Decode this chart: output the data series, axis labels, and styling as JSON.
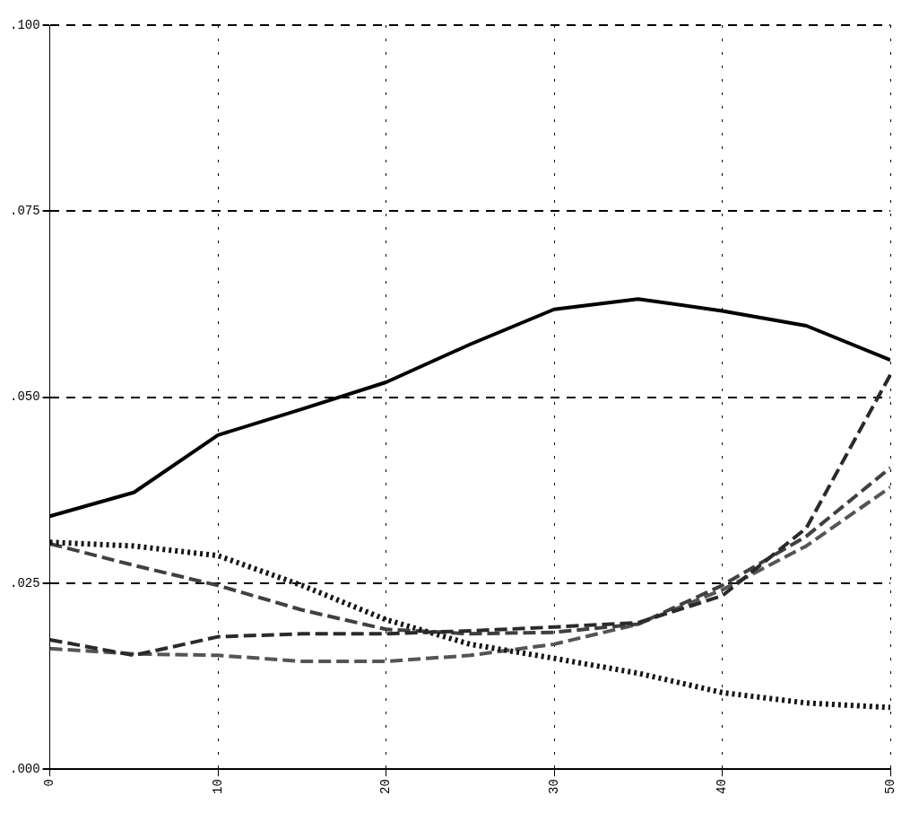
{
  "chart_data": {
    "type": "line",
    "x": [
      0,
      5,
      10,
      15,
      20,
      25,
      30,
      35,
      40,
      45,
      50
    ],
    "xlim": [
      0,
      50
    ],
    "xticks": [
      0,
      10,
      20,
      30,
      40,
      50
    ],
    "ylim": [
      0,
      0.1
    ],
    "yticks": [
      {
        "value": 0,
        "label": ".000"
      },
      {
        "value": 0.025,
        "label": ".025"
      },
      {
        "value": 0.05,
        "label": ".050"
      },
      {
        "value": 0.075,
        "label": ".075"
      },
      {
        "value": 0.1,
        "label": ".100"
      }
    ],
    "grid": true,
    "marker": "none",
    "series": [
      {
        "color": "#000000",
        "line_style": "solid",
        "values": [
          0.034,
          0.0372,
          0.0449,
          0.0484,
          0.052,
          0.0571,
          0.0618,
          0.0632,
          0.0616,
          0.0596,
          0.055
        ]
      },
      {
        "color": "#2a2a2a",
        "line_style": "dashed",
        "values": [
          0.0174,
          0.0153,
          0.0178,
          0.0182,
          0.0182,
          0.0186,
          0.0191,
          0.0197,
          0.0233,
          0.0324,
          0.053
        ]
      },
      {
        "color": "#151515",
        "line_style": "dotted",
        "values": [
          0.0305,
          0.03,
          0.0287,
          0.0247,
          0.0201,
          0.0168,
          0.0149,
          0.0129,
          0.0103,
          0.0089,
          0.0083
        ]
      },
      {
        "color": "#404040",
        "line_style": "dashed",
        "values": [
          0.0303,
          0.0274,
          0.0247,
          0.0214,
          0.0188,
          0.0182,
          0.0184,
          0.0195,
          0.0247,
          0.0313,
          0.0405
        ]
      },
      {
        "color": "#555555",
        "line_style": "dashed",
        "values": [
          0.0162,
          0.0155,
          0.0153,
          0.0145,
          0.0145,
          0.0153,
          0.0168,
          0.0195,
          0.0241,
          0.03,
          0.0379
        ]
      }
    ]
  }
}
